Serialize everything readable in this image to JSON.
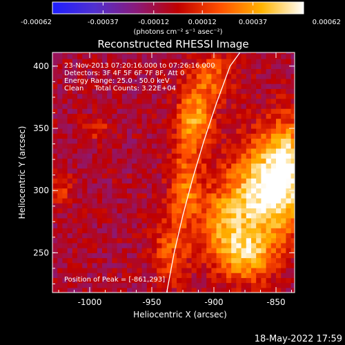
{
  "colorbar": {
    "tick_labels": [
      "-0.00062",
      "-0.00037",
      "-0.00012",
      "0.00012",
      "0.00037",
      "0.00062"
    ],
    "tick_values": [
      -0.00062,
      -0.00037,
      -0.00012,
      0.00012,
      0.00037,
      0.00062
    ],
    "range": [
      -0.00062,
      0.00062
    ],
    "unit_label": "(photons cm⁻² s⁻¹ asec⁻²)",
    "stops": [
      "#1e1eff",
      "#5030d0",
      "#8a1a7a",
      "#c00000",
      "#ff5000",
      "#ffb400",
      "#ffffff"
    ]
  },
  "plot": {
    "title": "Reconstructed RHESSI Image",
    "date_line": "23-Nov-2013 07:20:16.000 to 07:26:16.000",
    "detectors_line": "Detectors: 3F 4F 5F 6F 7F 8F, Att 0",
    "energy_line": "Energy Range: 25.0 - 50.0 keV",
    "method_line": "Clean     Total Counts: 3.22E+04",
    "peak_label": "Position of Peak = [-861,293]"
  },
  "footer": {
    "timestamp": "18-May-2022 17:59"
  },
  "chart_data": {
    "type": "heatmap",
    "title": "Reconstructed RHESSI Image",
    "xlabel": "Heliocentric X (arcsec)",
    "ylabel": "Heliocentric Y (arcsec)",
    "xlim": [
      -1030,
      -835
    ],
    "ylim": [
      218,
      411
    ],
    "x_ticks": [
      -1000,
      -950,
      -900,
      -850
    ],
    "x_tick_labels": [
      "-1000",
      "-950",
      "-900",
      "-850"
    ],
    "y_ticks": [
      250,
      300,
      350,
      400
    ],
    "y_tick_labels": [
      "250",
      "300",
      "350",
      "400"
    ],
    "peak_position": [
      -861,
      293
    ],
    "limb_curve": {
      "x": [
        -938,
        -932,
        -925,
        -917,
        -908,
        -898,
        -887,
        -879
      ],
      "y": [
        218,
        250,
        280,
        310,
        340,
        370,
        400,
        411
      ]
    },
    "bright_regions": [
      {
        "x": -862,
        "y": 295,
        "sx": 20,
        "sy": 30,
        "value": 0.00062
      },
      {
        "x": -843,
        "y": 320,
        "sx": 12,
        "sy": 25,
        "value": 0.0005
      },
      {
        "x": -918,
        "y": 355,
        "sx": 10,
        "sy": 18,
        "value": 0.00045
      },
      {
        "x": -925,
        "y": 300,
        "sx": 9,
        "sy": 22,
        "value": 0.00035
      },
      {
        "x": -895,
        "y": 270,
        "sx": 14,
        "sy": 22,
        "value": 0.00035
      },
      {
        "x": -875,
        "y": 245,
        "sx": 14,
        "sy": 14,
        "value": 0.0004
      },
      {
        "x": -903,
        "y": 390,
        "sx": 12,
        "sy": 14,
        "value": 0.0003
      },
      {
        "x": -937,
        "y": 250,
        "sx": 10,
        "sy": 18,
        "value": 0.00028
      },
      {
        "x": -1025,
        "y": 300,
        "sx": 6,
        "sy": 8,
        "value": 0.00022
      },
      {
        "x": -995,
        "y": 348,
        "sx": 7,
        "sy": 6,
        "value": 0.0002
      }
    ]
  }
}
